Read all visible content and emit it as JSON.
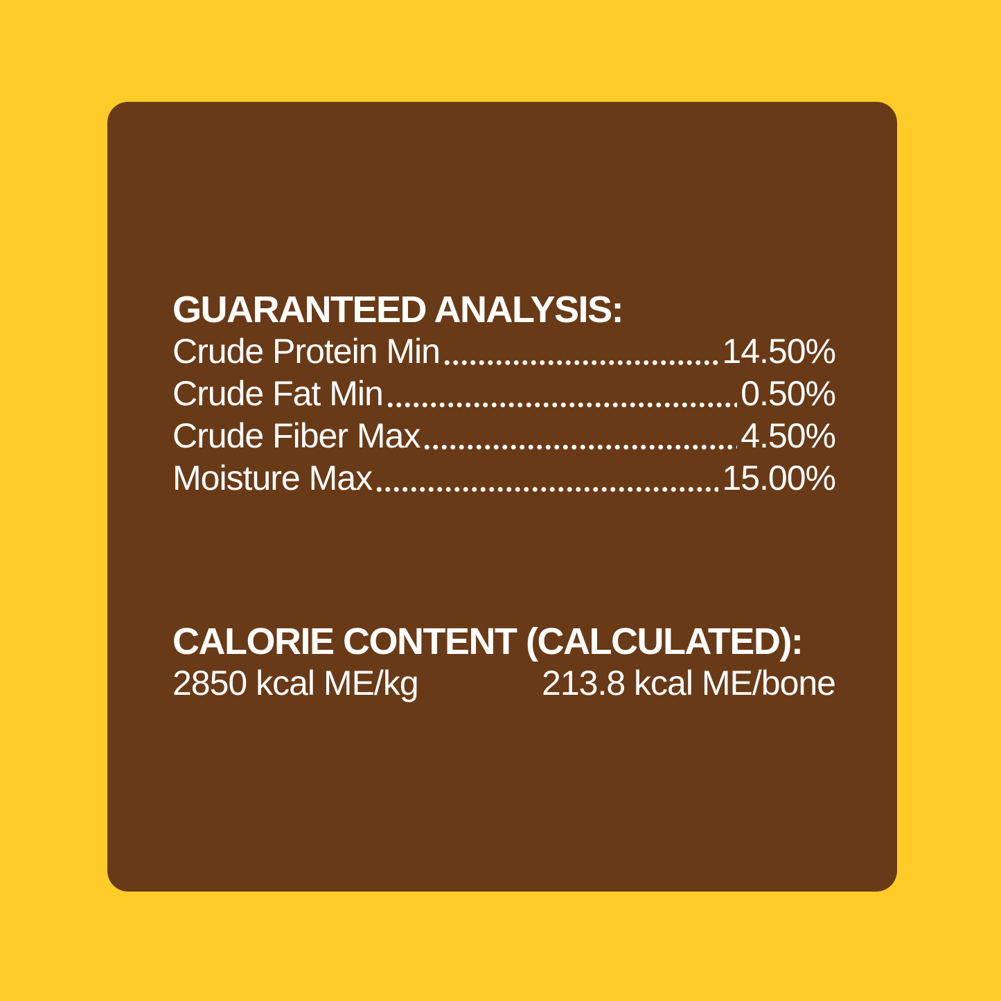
{
  "colors": {
    "background": "#FFCB28",
    "panel": "#693A17",
    "text": "#FFFFFF"
  },
  "panel": {
    "guaranteed_analysis": {
      "heading": "GUARANTEED ANALYSIS:",
      "rows": [
        {
          "label": "Crude Protein Min",
          "value": "14.50%"
        },
        {
          "label": "Crude Fat Min",
          "value": "0.50%"
        },
        {
          "label": "Crude Fiber Max",
          "value": "4.50%"
        },
        {
          "label": "Moisture Max",
          "value": "15.00%"
        }
      ]
    },
    "calorie_content": {
      "heading": "CALORIE CONTENT (CALCULATED):",
      "value_per_kg": "2850 kcal ME/kg",
      "value_per_bone": "213.8 kcal ME/bone"
    }
  }
}
